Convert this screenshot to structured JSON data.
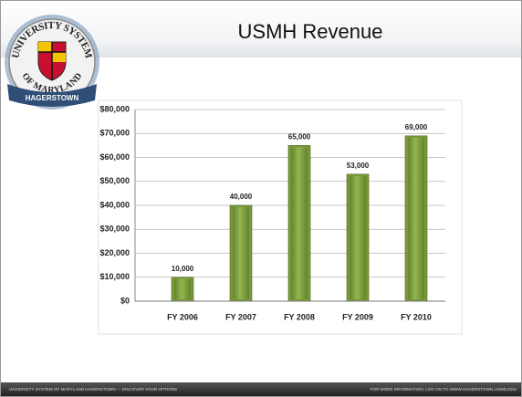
{
  "slide": {
    "logo_top": "UNIVERSITY SYSTEM",
    "logo_bottom": "OF MARYLAND",
    "logo_banner": "HAGERSTOWN",
    "footer_left": "UNIVERSITY SYSTEM OF MARYLAND HAGERSTOWN — DISCOVER YOUR OPTIONS",
    "footer_right": "FOR MORE INFORMATION, LOG ON TO WWW.HAGERSTOWN.USMD.EDU"
  },
  "chart_data": {
    "type": "bar",
    "title": "USMH Revenue",
    "categories": [
      "FY 2006",
      "FY 2007",
      "FY 2008",
      "FY 2009",
      "FY 2010"
    ],
    "values": [
      10000,
      40000,
      65000,
      53000,
      69000
    ],
    "value_labels": [
      "10,000",
      "40,000",
      "65,000",
      "53,000",
      "69,000"
    ],
    "color": "#789a3a",
    "ylim": [
      0,
      80000
    ],
    "yticks": [
      {
        "value": 0,
        "label": "$0"
      },
      {
        "value": 10000,
        "label": "$10,000"
      },
      {
        "value": 20000,
        "label": "$20,000"
      },
      {
        "value": 30000,
        "label": "$30,000"
      },
      {
        "value": 40000,
        "label": "$40,000"
      },
      {
        "value": 50000,
        "label": "$50,000"
      },
      {
        "value": 60000,
        "label": "$60,000"
      },
      {
        "value": 70000,
        "label": "$70,000"
      },
      {
        "value": 80000,
        "label": "$80,000"
      }
    ],
    "grid": true
  }
}
